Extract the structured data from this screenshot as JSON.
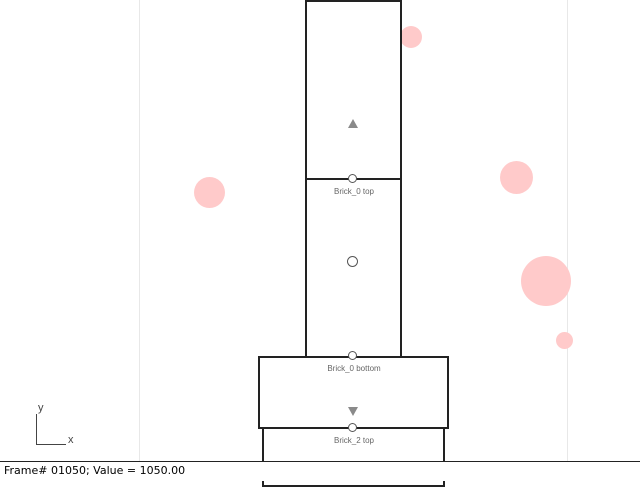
{
  "canvas": {
    "background": "#ffffff",
    "bricks": [
      {
        "name": "brick-0",
        "label_top": "Brick_0 top",
        "label_bottom": "Brick_0 bottom"
      },
      {
        "name": "brick-1"
      },
      {
        "name": "brick-2",
        "label_top": "Brick_2 top"
      }
    ],
    "dot_color": "#ffcaca",
    "axes": {
      "x": "x",
      "y": "y"
    }
  },
  "status": {
    "text": "Frame# 01050;  Value = 1050.00"
  },
  "icons": {
    "up_arrow": "triangle-up-icon",
    "down_arrow": "triangle-down-icon",
    "center": "circle-icon"
  }
}
